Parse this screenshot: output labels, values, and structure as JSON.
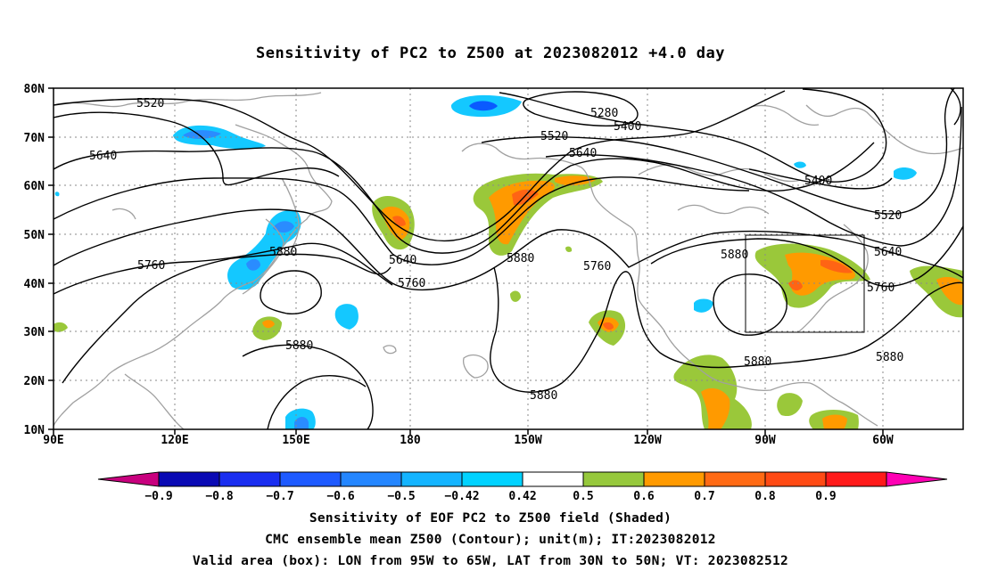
{
  "title": "Sensitivity of PC2 to Z500 at 2023082012 +4.0 day",
  "lat_labels": [
    "80N",
    "70N",
    "60N",
    "50N",
    "40N",
    "30N",
    "20N",
    "10N"
  ],
  "lon_labels": [
    "90E",
    "120E",
    "150E",
    "180",
    "150W",
    "120W",
    "90W",
    "60W"
  ],
  "contour_labels": [
    "5520",
    "5640",
    "5760",
    "5880",
    "5280",
    "5400",
    "5520",
    "5640",
    "5640",
    "5760",
    "5880",
    "5760",
    "5880",
    "5880",
    "5880",
    "5880",
    "5400",
    "5520",
    "5640",
    "5760",
    "5880"
  ],
  "colorbar": {
    "tick_labels": [
      "-0.9",
      "-0.8",
      "-0.7",
      "-0.6",
      "-0.5",
      "-0.42",
      "0.42",
      "0.5",
      "0.6",
      "0.7",
      "0.8",
      "0.9"
    ],
    "colors": [
      "#c8007e",
      "#0a0ab4",
      "#1a2ef0",
      "#1e5aff",
      "#2486ff",
      "#14b4ff",
      "#00d2ff",
      "#ffffff",
      "#96c83c",
      "#ff9a00",
      "#ff6a14",
      "#ff4a14",
      "#ff1a1a",
      "#ff00b4"
    ]
  },
  "shading_colors": {
    "neg_light": "#14c8ff",
    "neg_mid": "#2a8cff",
    "neg_dark": "#0a5aff",
    "pos_green": "#9ac83a",
    "pos_orange": "#ff9a00",
    "pos_dark": "#ff6414"
  },
  "captions": [
    "Sensitivity of EOF PC2 to Z500 field (Shaded)",
    "CMC ensemble mean Z500 (Contour); unit(m); IT:2023082012",
    "Valid area (box): LON from 95W to 65W, LAT from 30N to 50N; VT: 2023082512"
  ],
  "valid_area_box": {
    "lon_min": -95,
    "lon_max": -65,
    "lat_min": 30,
    "lat_max": 50
  }
}
